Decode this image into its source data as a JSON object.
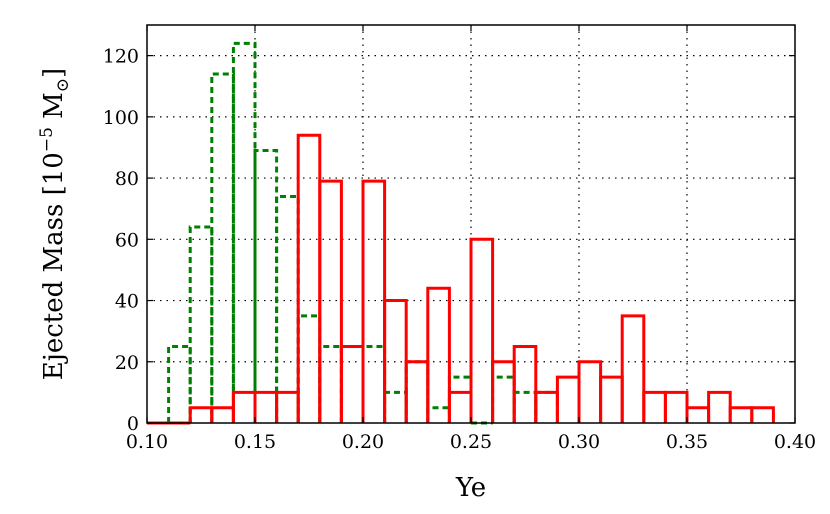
{
  "chart_data": {
    "type": "histogram",
    "xlabel": "Ye",
    "ylabel_main": "Ejected Mass [10",
    "ylabel_exp": "−5",
    "ylabel_unit": " M",
    "ylabel_sub": "⊙",
    "ylabel_close": "]",
    "xlim": [
      0.1,
      0.4
    ],
    "ylim": [
      0,
      130
    ],
    "xticks": [
      0.1,
      0.15,
      0.2,
      0.25,
      0.3,
      0.35,
      0.4
    ],
    "xtick_labels": [
      "0.10",
      "0.15",
      "0.20",
      "0.25",
      "0.30",
      "0.35",
      "0.40"
    ],
    "yticks": [
      0,
      20,
      40,
      60,
      80,
      100,
      120
    ],
    "ytick_labels": [
      "0",
      "20",
      "40",
      "60",
      "80",
      "100",
      "120"
    ],
    "grid": true,
    "bin_width": 0.01,
    "series": [
      {
        "style": "solid",
        "color": "#ff0000",
        "bins": [
          {
            "x0": 0.1,
            "y": 0
          },
          {
            "x0": 0.11,
            "y": 0
          },
          {
            "x0": 0.12,
            "y": 5
          },
          {
            "x0": 0.13,
            "y": 5
          },
          {
            "x0": 0.14,
            "y": 10
          },
          {
            "x0": 0.15,
            "y": 10
          },
          {
            "x0": 0.16,
            "y": 10
          },
          {
            "x0": 0.17,
            "y": 94
          },
          {
            "x0": 0.18,
            "y": 79
          },
          {
            "x0": 0.19,
            "y": 25
          },
          {
            "x0": 0.2,
            "y": 79
          },
          {
            "x0": 0.21,
            "y": 40
          },
          {
            "x0": 0.22,
            "y": 20
          },
          {
            "x0": 0.23,
            "y": 44
          },
          {
            "x0": 0.24,
            "y": 10
          },
          {
            "x0": 0.25,
            "y": 60
          },
          {
            "x0": 0.26,
            "y": 20
          },
          {
            "x0": 0.27,
            "y": 25
          },
          {
            "x0": 0.28,
            "y": 10
          },
          {
            "x0": 0.29,
            "y": 15
          },
          {
            "x0": 0.3,
            "y": 20
          },
          {
            "x0": 0.31,
            "y": 15
          },
          {
            "x0": 0.32,
            "y": 35
          },
          {
            "x0": 0.33,
            "y": 10
          },
          {
            "x0": 0.34,
            "y": 10
          },
          {
            "x0": 0.35,
            "y": 5
          },
          {
            "x0": 0.36,
            "y": 10
          },
          {
            "x0": 0.37,
            "y": 5
          },
          {
            "x0": 0.38,
            "y": 5
          }
        ]
      },
      {
        "style": "dashed",
        "color": "#008000",
        "bins": [
          {
            "x0": 0.11,
            "y": 25
          },
          {
            "x0": 0.12,
            "y": 64
          },
          {
            "x0": 0.13,
            "y": 114
          },
          {
            "x0": 0.14,
            "y": 124
          },
          {
            "x0": 0.15,
            "y": 89
          },
          {
            "x0": 0.16,
            "y": 74
          },
          {
            "x0": 0.17,
            "y": 35
          },
          {
            "x0": 0.18,
            "y": 25
          },
          {
            "x0": 0.19,
            "y": 25
          },
          {
            "x0": 0.2,
            "y": 25
          },
          {
            "x0": 0.21,
            "y": 10
          },
          {
            "x0": 0.22,
            "y": 20
          },
          {
            "x0": 0.23,
            "y": 5
          },
          {
            "x0": 0.24,
            "y": 15
          },
          {
            "x0": 0.25,
            "y": 0
          },
          {
            "x0": 0.26,
            "y": 15
          },
          {
            "x0": 0.27,
            "y": 10
          },
          {
            "x0": 0.28,
            "y": 10
          }
        ]
      }
    ]
  }
}
